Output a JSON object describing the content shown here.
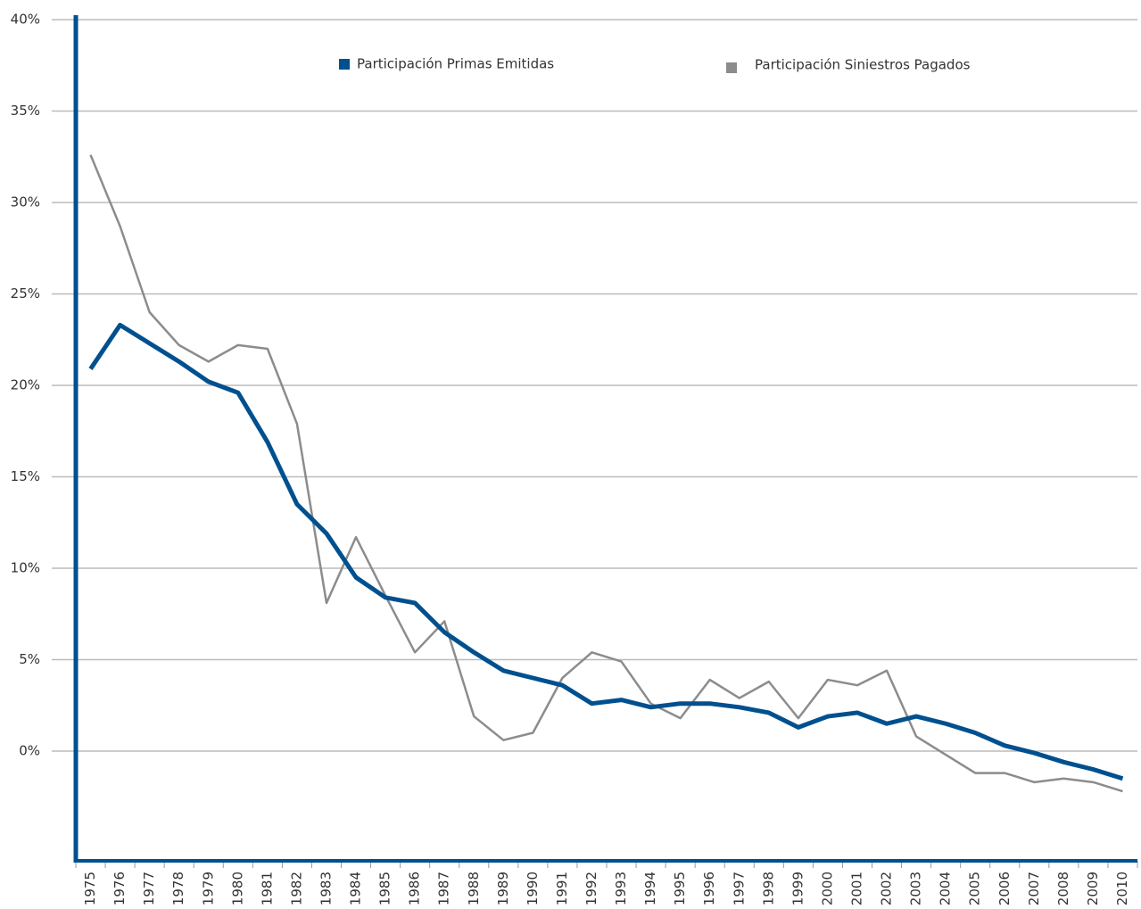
{
  "chart_data": {
    "type": "line",
    "categories": [
      "1975",
      "1976",
      "1977",
      "1978",
      "1979",
      "1980",
      "1981",
      "1982",
      "1983",
      "1984",
      "1985",
      "1986",
      "1987",
      "1988",
      "1989",
      "1990",
      "1991",
      "1992",
      "1993",
      "1994",
      "1995",
      "1996",
      "1997",
      "1998",
      "1999",
      "2000",
      "2001",
      "2002",
      "2003",
      "2004",
      "2005",
      "2006",
      "2007",
      "2008",
      "2009",
      "2010"
    ],
    "series": [
      {
        "name": "Participación Primas Emitidas",
        "color": "#00508f",
        "values": [
          20.9,
          23.3,
          22.3,
          21.3,
          20.2,
          19.6,
          16.9,
          13.5,
          11.9,
          9.5,
          8.4,
          8.1,
          6.5,
          5.4,
          4.4,
          4.0,
          3.6,
          2.6,
          2.8,
          2.4,
          2.6,
          2.6,
          2.4,
          2.1,
          1.3,
          1.9,
          2.1,
          1.5,
          1.9,
          1.5,
          1.0,
          0.3,
          -0.1,
          -0.6,
          -1.0,
          -1.5
        ]
      },
      {
        "name": "Participación Siniestros Pagados",
        "color": "#8c8c8c",
        "values": [
          32.6,
          28.7,
          24.0,
          22.2,
          21.3,
          22.2,
          22.0,
          17.9,
          8.1,
          11.7,
          8.5,
          5.4,
          7.1,
          1.9,
          0.6,
          1.0,
          4.0,
          5.4,
          4.9,
          2.6,
          1.8,
          3.9,
          2.9,
          3.8,
          1.8,
          3.9,
          3.6,
          4.4,
          0.8,
          -0.2,
          -1.2,
          -1.2,
          -1.7,
          -1.5,
          -1.7,
          -2.2
        ]
      }
    ],
    "ylim": [
      -6,
      40
    ],
    "yticks": [
      {
        "value": 0,
        "label": "0%"
      },
      {
        "value": 5,
        "label": "5%"
      },
      {
        "value": 10,
        "label": "10%"
      },
      {
        "value": 15,
        "label": "15%"
      },
      {
        "value": 20,
        "label": "20%"
      },
      {
        "value": 25,
        "label": "25%"
      },
      {
        "value": 30,
        "label": "30%"
      },
      {
        "value": 35,
        "label": "35%"
      },
      {
        "value": 40,
        "label": "40%"
      }
    ],
    "grid": true,
    "legend": "top"
  }
}
